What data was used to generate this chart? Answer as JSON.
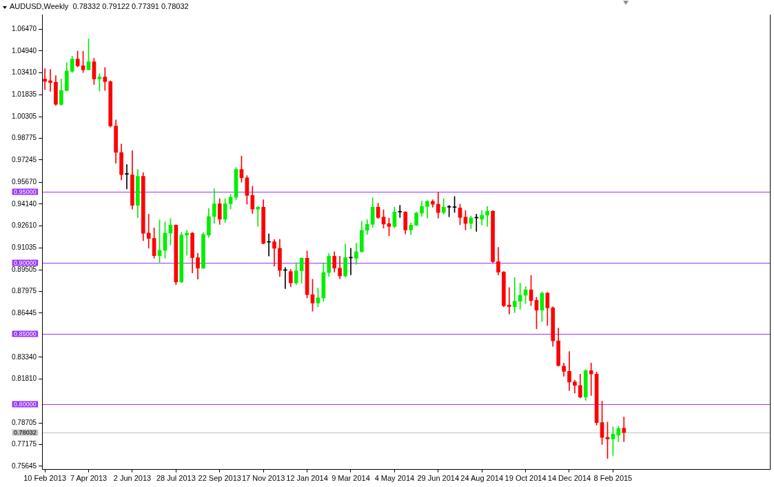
{
  "chart_data": {
    "type": "candlestick",
    "title": "AUDUSD,Weekly  0.78332 0.79122 0.77391 0.78032",
    "categories": [
      "10 Feb 2013",
      null,
      null,
      null,
      null,
      null,
      null,
      null,
      "7 Apr 2013",
      null,
      null,
      null,
      null,
      null,
      null,
      null,
      "2 Jun 2013",
      null,
      null,
      null,
      null,
      null,
      null,
      null,
      "28 Jul 2013",
      null,
      null,
      null,
      null,
      null,
      null,
      null,
      "22 Sep 2013",
      null,
      null,
      null,
      null,
      null,
      null,
      null,
      "17 Nov 2013",
      null,
      null,
      null,
      null,
      null,
      null,
      null,
      "12 Jan 2014",
      null,
      null,
      null,
      null,
      null,
      null,
      null,
      "9 Mar 2014",
      null,
      null,
      null,
      null,
      null,
      null,
      null,
      "4 May 2014",
      null,
      null,
      null,
      null,
      null,
      null,
      null,
      "29 Jun 2014",
      null,
      null,
      null,
      null,
      null,
      null,
      null,
      "24 Aug 2014",
      null,
      null,
      null,
      null,
      null,
      null,
      null,
      "19 Oct 2014",
      null,
      null,
      null,
      null,
      null,
      null,
      null,
      "14 Dec 2014",
      null,
      null,
      null,
      null,
      null,
      null,
      null,
      "8 Feb 2015",
      null,
      null
    ],
    "ohlc": [
      [
        1.0296,
        1.0369,
        1.0221,
        1.028
      ],
      [
        1.0283,
        1.0364,
        1.0209,
        1.0271
      ],
      [
        1.0274,
        1.032,
        1.0109,
        1.0118
      ],
      [
        1.0117,
        1.0296,
        1.0109,
        1.0216
      ],
      [
        1.0215,
        1.0411,
        1.0212,
        1.0353
      ],
      [
        1.035,
        1.0457,
        1.0342,
        1.0437
      ],
      [
        1.0437,
        1.0493,
        1.038,
        1.0389
      ],
      [
        1.0389,
        1.0493,
        1.0342,
        1.0361
      ],
      [
        1.0361,
        1.0579,
        1.036,
        1.0417
      ],
      [
        1.0417,
        1.0442,
        1.0257,
        1.0296
      ],
      [
        1.0296,
        1.0333,
        1.021,
        1.031
      ],
      [
        1.031,
        1.0377,
        1.0215,
        1.0277
      ],
      [
        1.0278,
        1.0283,
        0.9957,
        0.9964
      ],
      [
        0.9964,
        1.0008,
        0.9702,
        0.9778
      ],
      [
        0.9778,
        0.9837,
        0.9584,
        0.9622
      ],
      [
        0.9624,
        0.9692,
        0.9521,
        0.9624
      ],
      [
        0.9619,
        0.979,
        0.9378,
        0.9405
      ],
      [
        0.9405,
        0.9658,
        0.9319,
        0.961
      ],
      [
        0.961,
        0.9636,
        0.9156,
        0.9208
      ],
      [
        0.9209,
        0.9343,
        0.9102,
        0.9172
      ],
      [
        0.9172,
        0.9246,
        0.9032,
        0.905
      ],
      [
        0.905,
        0.9302,
        0.8998,
        0.9088
      ],
      [
        0.9088,
        0.9288,
        0.9032,
        0.9209
      ],
      [
        0.9209,
        0.9312,
        0.9125,
        0.9265
      ],
      [
        0.9265,
        0.9268,
        0.8845,
        0.8864
      ],
      [
        0.8864,
        0.9215,
        0.886,
        0.9195
      ],
      [
        0.9195,
        0.9229,
        0.9053,
        0.9209
      ],
      [
        0.9209,
        0.9215,
        0.8928,
        0.9036
      ],
      [
        0.9036,
        0.9067,
        0.8884,
        0.8962
      ],
      [
        0.8962,
        0.9215,
        0.8959,
        0.92
      ],
      [
        0.9195,
        0.9382,
        0.9179,
        0.9326
      ],
      [
        0.9326,
        0.9521,
        0.9277,
        0.9416
      ],
      [
        0.9416,
        0.9451,
        0.927,
        0.9307
      ],
      [
        0.9307,
        0.9451,
        0.9284,
        0.9416
      ],
      [
        0.9416,
        0.9483,
        0.938,
        0.9462
      ],
      [
        0.9462,
        0.9672,
        0.9444,
        0.9658
      ],
      [
        0.9658,
        0.9752,
        0.9568,
        0.9599
      ],
      [
        0.9599,
        0.9615,
        0.9413,
        0.9475
      ],
      [
        0.9475,
        0.954,
        0.9347,
        0.9378
      ],
      [
        0.9378,
        0.9397,
        0.9257,
        0.9392
      ],
      [
        0.9392,
        0.9444,
        0.9133,
        0.9136
      ],
      [
        0.9145,
        0.9203,
        0.9047,
        0.9145
      ],
      [
        0.9148,
        0.9164,
        0.8977,
        0.9102
      ],
      [
        0.9102,
        0.9164,
        0.8903,
        0.8946
      ],
      [
        0.8946,
        0.8966,
        0.8817,
        0.8946
      ],
      [
        0.8938,
        0.8954,
        0.883,
        0.8858
      ],
      [
        0.8858,
        0.9001,
        0.8845,
        0.8943
      ],
      [
        0.8943,
        0.9036,
        0.8855,
        0.9032
      ],
      [
        0.9032,
        0.9083,
        0.8752,
        0.8775
      ],
      [
        0.8775,
        0.8884,
        0.8658,
        0.8716
      ],
      [
        0.8716,
        0.8822,
        0.869,
        0.8752
      ],
      [
        0.8752,
        0.8993,
        0.8728,
        0.8931
      ],
      [
        0.8931,
        0.9066,
        0.8903,
        0.9046
      ],
      [
        0.9046,
        0.9078,
        0.8934,
        0.8962
      ],
      [
        0.8962,
        0.9047,
        0.8887,
        0.8907
      ],
      [
        0.8907,
        0.9133,
        0.89,
        0.9036
      ],
      [
        0.9034,
        0.9102,
        0.8915,
        0.9034
      ],
      [
        0.9032,
        0.9137,
        0.8988,
        0.9078
      ],
      [
        0.9078,
        0.9293,
        0.9074,
        0.9229
      ],
      [
        0.9229,
        0.9304,
        0.92,
        0.9271
      ],
      [
        0.9271,
        0.9459,
        0.9249,
        0.9392
      ],
      [
        0.9392,
        0.942,
        0.9312,
        0.9319
      ],
      [
        0.9322,
        0.9374,
        0.9245,
        0.9273
      ],
      [
        0.9276,
        0.9315,
        0.919,
        0.9256
      ],
      [
        0.9256,
        0.9392,
        0.9249,
        0.9358
      ],
      [
        0.9358,
        0.9405,
        0.9319,
        0.9358
      ],
      [
        0.9358,
        0.9361,
        0.9203,
        0.9231
      ],
      [
        0.9231,
        0.928,
        0.9198,
        0.9265
      ],
      [
        0.9265,
        0.9358,
        0.9262,
        0.935
      ],
      [
        0.935,
        0.9433,
        0.9327,
        0.9397
      ],
      [
        0.9397,
        0.9439,
        0.9315,
        0.9433
      ],
      [
        0.9433,
        0.9444,
        0.9392,
        0.9413
      ],
      [
        0.9413,
        0.9498,
        0.9315,
        0.9354
      ],
      [
        0.9354,
        0.9452,
        0.9343,
        0.9392
      ],
      [
        0.9392,
        0.9405,
        0.9324,
        0.9392
      ],
      [
        0.939,
        0.9467,
        0.9355,
        0.939
      ],
      [
        0.9386,
        0.9413,
        0.9268,
        0.9319
      ],
      [
        0.9322,
        0.9369,
        0.9231,
        0.9277
      ],
      [
        0.9277,
        0.933,
        0.924,
        0.9316
      ],
      [
        0.9316,
        0.9343,
        0.9221,
        0.9316
      ],
      [
        0.9307,
        0.9369,
        0.9265,
        0.9335
      ],
      [
        0.9335,
        0.9397,
        0.9257,
        0.9363
      ],
      [
        0.9363,
        0.9369,
        0.8998,
        0.9008
      ],
      [
        0.9008,
        0.9109,
        0.8915,
        0.8934
      ],
      [
        0.8934,
        0.894,
        0.869,
        0.8697
      ],
      [
        0.8702,
        0.8825,
        0.8638,
        0.8691
      ],
      [
        0.869,
        0.8896,
        0.8648,
        0.8729
      ],
      [
        0.8729,
        0.8856,
        0.8671,
        0.8771
      ],
      [
        0.8771,
        0.8833,
        0.8713,
        0.8809
      ],
      [
        0.8809,
        0.891,
        0.8697,
        0.8733
      ],
      [
        0.8735,
        0.8757,
        0.8534,
        0.8666
      ],
      [
        0.8666,
        0.8795,
        0.8585,
        0.8786
      ],
      [
        0.8786,
        0.8791,
        0.8557,
        0.8682
      ],
      [
        0.8682,
        0.869,
        0.841,
        0.8449
      ],
      [
        0.8449,
        0.8539,
        0.827,
        0.8275
      ],
      [
        0.8271,
        0.8293,
        0.82,
        0.8234
      ],
      [
        0.8234,
        0.8374,
        0.8099,
        0.8158
      ],
      [
        0.816,
        0.8172,
        0.808,
        0.8135
      ],
      [
        0.8135,
        0.8215,
        0.8046,
        0.8053
      ],
      [
        0.8052,
        0.8247,
        0.8029,
        0.8239
      ],
      [
        0.8239,
        0.8293,
        0.8063,
        0.8215
      ],
      [
        0.8215,
        0.8231,
        0.7855,
        0.7873
      ],
      [
        0.7873,
        0.8024,
        0.7718,
        0.7768
      ],
      [
        0.7768,
        0.7877,
        0.762,
        0.7757
      ],
      [
        0.7757,
        0.7842,
        0.764,
        0.7791
      ],
      [
        0.7785,
        0.7847,
        0.7738,
        0.7831
      ],
      [
        0.78332,
        0.79122,
        0.77391,
        0.78032
      ]
    ],
    "colors": [
      "#ff0000",
      "#ff0000",
      "#ff0000",
      "#00ee00",
      "#00ee00",
      "#00ee00",
      "#ff0000",
      "#ff0000",
      "#00ee00",
      "#ff0000",
      "#00ee00",
      "#ff0000",
      "#ff0000",
      "#ff0000",
      "#ff0000",
      "#000000",
      "#ff0000",
      "#00ee00",
      "#ff0000",
      "#ff0000",
      "#ff0000",
      "#00ee00",
      "#00ee00",
      "#00ee00",
      "#ff0000",
      "#00ee00",
      "#00ee00",
      "#ff0000",
      "#ff0000",
      "#00ee00",
      "#00ee00",
      "#00ee00",
      "#ff0000",
      "#00ee00",
      "#00ee00",
      "#00ee00",
      "#ff0000",
      "#ff0000",
      "#ff0000",
      "#00ee00",
      "#ff0000",
      "#000000",
      "#ff0000",
      "#ff0000",
      "#000000",
      "#ff0000",
      "#00ee00",
      "#00ee00",
      "#ff0000",
      "#ff0000",
      "#00ee00",
      "#00ee00",
      "#00ee00",
      "#ff0000",
      "#ff0000",
      "#00ee00",
      "#000000",
      "#00ee00",
      "#00ee00",
      "#00ee00",
      "#00ee00",
      "#ff0000",
      "#ff0000",
      "#ff0000",
      "#00ee00",
      "#000000",
      "#ff0000",
      "#00ee00",
      "#00ee00",
      "#00ee00",
      "#00ee00",
      "#ff0000",
      "#ff0000",
      "#00ee00",
      "#000000",
      "#000000",
      "#ff0000",
      "#ff0000",
      "#00ee00",
      "#000000",
      "#00ee00",
      "#00ee00",
      "#ff0000",
      "#ff0000",
      "#ff0000",
      "#ff0000",
      "#00ee00",
      "#00ee00",
      "#00ee00",
      "#ff0000",
      "#ff0000",
      "#00ee00",
      "#ff0000",
      "#ff0000",
      "#ff0000",
      "#ff0000",
      "#ff0000",
      "#ff0000",
      "#ff0000",
      "#00ee00",
      "#ff0000",
      "#ff0000",
      "#ff0000",
      "#ff0000",
      "#00ee00",
      "#00ee00",
      "#ff0000"
    ],
    "ylim": [
      0.7541,
      1.075
    ],
    "yticks": [
      {
        "value": 1.0647,
        "label": "1.06470"
      },
      {
        "value": 1.0494,
        "label": "1.04940"
      },
      {
        "value": 1.0341,
        "label": "1.03410"
      },
      1.01835,
      1.00305,
      0.98775,
      0.97245,
      {
        "value": 0.9567,
        "label": "0.95670"
      },
      {
        "value": 0.9414,
        "label": "0.94140"
      },
      {
        "value": 0.9261,
        "label": "0.92610"
      },
      0.91035,
      0.89505,
      0.87975,
      0.86445,
      {
        "value": 0.8334,
        "label": "0.83340"
      },
      {
        "value": 0.8181,
        "label": "0.81810"
      },
      0.78705,
      0.77175,
      0.75645
    ],
    "ref_lines": [
      {
        "axis": "y",
        "value": 0.95,
        "label": "0.95000",
        "color": "#9933ff"
      },
      {
        "axis": "y",
        "value": 0.9,
        "label": "0.90000",
        "color": "#9933ff"
      },
      {
        "axis": "y",
        "value": 0.85,
        "label": "0.85000",
        "color": "#9933ff"
      },
      {
        "axis": "y",
        "value": 0.8,
        "label": "0.80000",
        "color": "#9933ff"
      },
      {
        "axis": "y",
        "value": 0.78032,
        "label": "0.78032",
        "color": "#c0c0c0"
      }
    ],
    "grid": false,
    "legend": false
  }
}
